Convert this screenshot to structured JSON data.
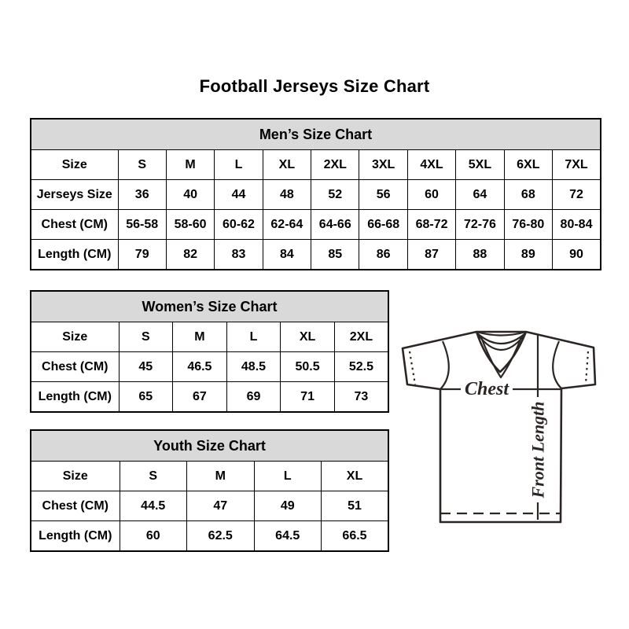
{
  "page": {
    "title": "Football Jerseys Size Chart"
  },
  "tables": {
    "mens": {
      "title": "Men’s Size Chart",
      "rows": [
        {
          "label": "Size",
          "values": [
            "S",
            "M",
            "L",
            "XL",
            "2XL",
            "3XL",
            "4XL",
            "5XL",
            "6XL",
            "7XL"
          ]
        },
        {
          "label": "Jerseys Size",
          "values": [
            "36",
            "40",
            "44",
            "48",
            "52",
            "56",
            "60",
            "64",
            "68",
            "72"
          ]
        },
        {
          "label": "Chest (CM)",
          "values": [
            "56-58",
            "58-60",
            "60-62",
            "62-64",
            "64-66",
            "66-68",
            "68-72",
            "72-76",
            "76-80",
            "80-84"
          ]
        },
        {
          "label": "Length (CM)",
          "values": [
            "79",
            "82",
            "83",
            "84",
            "85",
            "86",
            "87",
            "88",
            "89",
            "90"
          ]
        }
      ]
    },
    "womens": {
      "title": "Women’s Size Chart",
      "rows": [
        {
          "label": "Size",
          "values": [
            "S",
            "M",
            "L",
            "XL",
            "2XL"
          ]
        },
        {
          "label": "Chest (CM)",
          "values": [
            "45",
            "46.5",
            "48.5",
            "50.5",
            "52.5"
          ]
        },
        {
          "label": "Length (CM)",
          "values": [
            "65",
            "67",
            "69",
            "71",
            "73"
          ]
        }
      ]
    },
    "youth": {
      "title": "Youth Size Chart",
      "rows": [
        {
          "label": "Size",
          "values": [
            "S",
            "M",
            "L",
            "XL"
          ]
        },
        {
          "label": "Chest (CM)",
          "values": [
            "44.5",
            "47",
            "49",
            "51"
          ]
        },
        {
          "label": "Length (CM)",
          "values": [
            "60",
            "62.5",
            "64.5",
            "66.5"
          ]
        }
      ]
    }
  },
  "diagram": {
    "chest_label": "Chest",
    "front_length_label": "Front Length"
  },
  "colors": {
    "background": "#ffffff",
    "text": "#000000",
    "table_border": "#000000",
    "table_header_bg": "#d9d9d9",
    "diagram_line": "#2b2623"
  }
}
